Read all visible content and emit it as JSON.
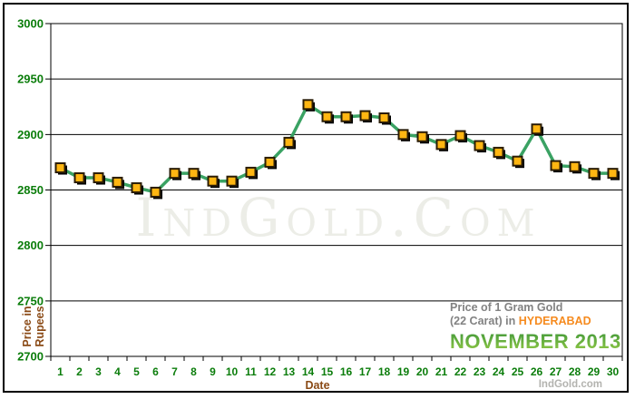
{
  "chart_data": {
    "type": "line",
    "title": "Price of 1 Gram Gold (22 Carat) in HYDERABAD - NOVEMBER 2013",
    "categories": [
      1,
      2,
      3,
      4,
      5,
      6,
      7,
      8,
      9,
      10,
      11,
      12,
      13,
      14,
      15,
      16,
      17,
      18,
      19,
      20,
      21,
      22,
      23,
      24,
      25,
      26,
      27,
      28,
      29,
      30
    ],
    "values": [
      2870,
      2861,
      2861,
      2857,
      2852,
      2848,
      2865,
      2865,
      2858,
      2858,
      2866,
      2875,
      2893,
      2927,
      2916,
      2916,
      2917,
      2915,
      2900,
      2898,
      2891,
      2899,
      2890,
      2884,
      2876,
      2905,
      2872,
      2871,
      2865,
      2865
    ],
    "xlabel": "Date",
    "ylabel": "Price in Rupees",
    "ylabel_lines": [
      "Price in",
      "Rupees"
    ],
    "ylim": [
      2700,
      3000
    ],
    "ytick_step": 50,
    "grid": true,
    "legend": "none",
    "marker": "square"
  },
  "annotation": {
    "line1": "Price of 1 Gram Gold",
    "line2": "(22 Carat) in",
    "city": "HYDERABAD",
    "month_year": "NOVEMBER 2013"
  },
  "watermark": "IndGold.Com",
  "credit": "IndGold.com",
  "colors": {
    "line": "#3aa263",
    "marker_fill": "#ffb612",
    "marker_border": "#2a1c05",
    "marker_shadow": "#000000",
    "grid": "#000000",
    "axis_label_green": "#0b7d0b",
    "axis_title_brown": "#8a4a16",
    "title_gray": "#828282",
    "city_orange": "#f68b1f",
    "month_green_top": "#3d953a",
    "month_green_bottom": "#96cc45",
    "watermark": "#ecede7",
    "credit": "#b3b3af"
  }
}
